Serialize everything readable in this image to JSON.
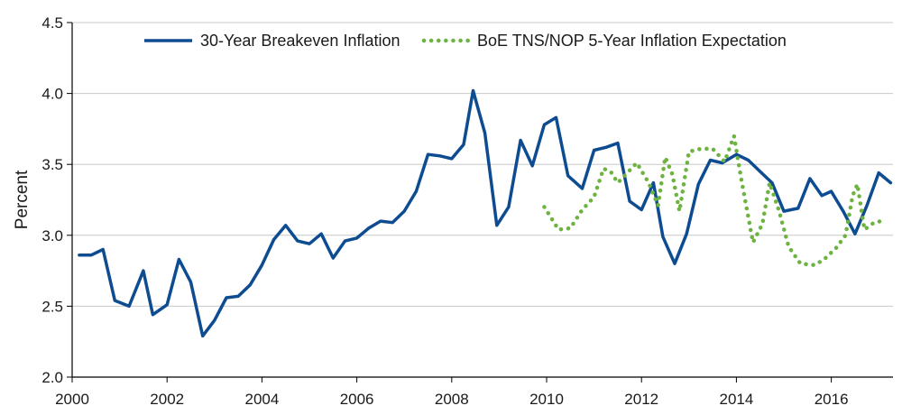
{
  "chart_data": {
    "type": "line",
    "title": "",
    "xlabel": "",
    "ylabel": "Percent",
    "xlim": [
      2000,
      2017.3
    ],
    "ylim": [
      2.0,
      4.5
    ],
    "x_ticks": [
      2000,
      2002,
      2004,
      2006,
      2008,
      2010,
      2012,
      2014,
      2016
    ],
    "x_tick_labels": [
      "2000",
      "2002",
      "2004",
      "2006",
      "2008",
      "2010",
      "2012",
      "2014",
      "2016"
    ],
    "y_ticks": [
      2.0,
      2.5,
      3.0,
      3.5,
      4.0,
      4.5
    ],
    "y_tick_labels": [
      "2.0",
      "2.5",
      "3.0",
      "3.5",
      "4.0",
      "4.5"
    ],
    "grid": "horizontal",
    "legend_position": "top",
    "series": [
      {
        "name": "30-Year Breakeven Inflation",
        "color": "#0e4c92",
        "style": "solid",
        "points": [
          [
            2000.15,
            2.86
          ],
          [
            2000.4,
            2.86
          ],
          [
            2000.65,
            2.9
          ],
          [
            2000.9,
            2.54
          ],
          [
            2001.2,
            2.5
          ],
          [
            2001.5,
            2.75
          ],
          [
            2001.7,
            2.44
          ],
          [
            2002.0,
            2.51
          ],
          [
            2002.25,
            2.83
          ],
          [
            2002.5,
            2.67
          ],
          [
            2002.75,
            2.29
          ],
          [
            2003.0,
            2.4
          ],
          [
            2003.25,
            2.56
          ],
          [
            2003.5,
            2.57
          ],
          [
            2003.75,
            2.65
          ],
          [
            2004.0,
            2.79
          ],
          [
            2004.25,
            2.97
          ],
          [
            2004.5,
            3.07
          ],
          [
            2004.75,
            2.96
          ],
          [
            2005.0,
            2.94
          ],
          [
            2005.25,
            3.01
          ],
          [
            2005.5,
            2.84
          ],
          [
            2005.75,
            2.96
          ],
          [
            2006.0,
            2.98
          ],
          [
            2006.25,
            3.05
          ],
          [
            2006.5,
            3.1
          ],
          [
            2006.75,
            3.09
          ],
          [
            2007.0,
            3.17
          ],
          [
            2007.25,
            3.31
          ],
          [
            2007.5,
            3.57
          ],
          [
            2007.75,
            3.56
          ],
          [
            2008.0,
            3.54
          ],
          [
            2008.25,
            3.64
          ],
          [
            2008.45,
            4.02
          ],
          [
            2008.7,
            3.72
          ],
          [
            2008.95,
            3.07
          ],
          [
            2009.2,
            3.2
          ],
          [
            2009.45,
            3.67
          ],
          [
            2009.7,
            3.49
          ],
          [
            2009.95,
            3.78
          ],
          [
            2010.2,
            3.83
          ],
          [
            2010.45,
            3.42
          ],
          [
            2010.75,
            3.33
          ],
          [
            2011.0,
            3.6
          ],
          [
            2011.25,
            3.62
          ],
          [
            2011.5,
            3.65
          ],
          [
            2011.75,
            3.24
          ],
          [
            2012.0,
            3.18
          ],
          [
            2012.25,
            3.37
          ],
          [
            2012.45,
            2.99
          ],
          [
            2012.7,
            2.8
          ],
          [
            2012.95,
            3.01
          ],
          [
            2013.2,
            3.36
          ],
          [
            2013.45,
            3.53
          ],
          [
            2013.7,
            3.51
          ],
          [
            2014.0,
            3.57
          ],
          [
            2014.25,
            3.53
          ],
          [
            2014.5,
            3.45
          ],
          [
            2014.75,
            3.37
          ],
          [
            2015.0,
            3.17
          ],
          [
            2015.3,
            3.19
          ],
          [
            2015.55,
            3.4
          ],
          [
            2015.8,
            3.28
          ],
          [
            2016.0,
            3.31
          ],
          [
            2016.25,
            3.17
          ],
          [
            2016.5,
            3.01
          ],
          [
            2016.75,
            3.21
          ],
          [
            2017.0,
            3.44
          ],
          [
            2017.25,
            3.37
          ]
        ]
      },
      {
        "name": "BoE TNS/NOP 5-Year Inflation Expectation",
        "color": "#6db33f",
        "style": "dotted",
        "points": [
          [
            2009.95,
            3.2
          ],
          [
            2010.25,
            3.04
          ],
          [
            2010.5,
            3.05
          ],
          [
            2010.75,
            3.18
          ],
          [
            2011.0,
            3.27
          ],
          [
            2011.2,
            3.47
          ],
          [
            2011.35,
            3.45
          ],
          [
            2011.5,
            3.37
          ],
          [
            2011.7,
            3.44
          ],
          [
            2011.9,
            3.51
          ],
          [
            2012.15,
            3.37
          ],
          [
            2012.35,
            3.21
          ],
          [
            2012.5,
            3.55
          ],
          [
            2012.65,
            3.43
          ],
          [
            2012.8,
            3.17
          ],
          [
            2013.0,
            3.59
          ],
          [
            2013.25,
            3.61
          ],
          [
            2013.5,
            3.61
          ],
          [
            2013.75,
            3.52
          ],
          [
            2013.95,
            3.7
          ],
          [
            2014.1,
            3.4
          ],
          [
            2014.35,
            2.95
          ],
          [
            2014.55,
            3.08
          ],
          [
            2014.7,
            3.37
          ],
          [
            2014.9,
            3.17
          ],
          [
            2015.1,
            2.92
          ],
          [
            2015.35,
            2.8
          ],
          [
            2015.65,
            2.79
          ],
          [
            2015.85,
            2.83
          ],
          [
            2016.1,
            2.91
          ],
          [
            2016.3,
            3.0
          ],
          [
            2016.45,
            3.28
          ],
          [
            2016.55,
            3.36
          ],
          [
            2016.7,
            3.04
          ],
          [
            2016.9,
            3.09
          ],
          [
            2017.05,
            3.1
          ]
        ]
      }
    ]
  }
}
